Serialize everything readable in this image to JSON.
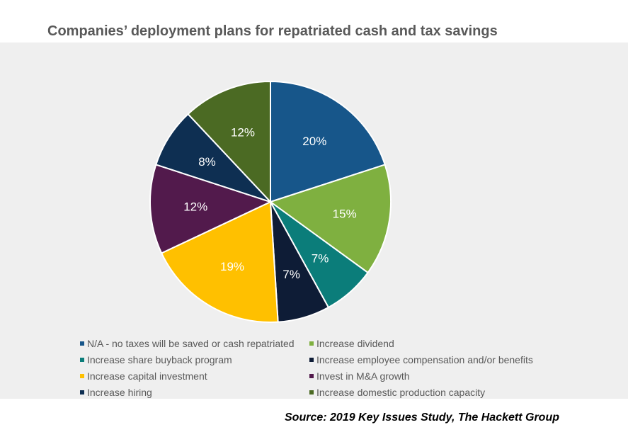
{
  "chart_data": {
    "type": "pie",
    "title": "Companies’ deployment plans for repatriated cash and tax savings",
    "slices": [
      {
        "label": "N/A - no taxes will be saved or cash repatriated",
        "value": 20,
        "display": "20%",
        "color": "#17568a"
      },
      {
        "label": "Increase dividend",
        "value": 15,
        "display": "15%",
        "color": "#7fb040"
      },
      {
        "label": "Increase share buyback program",
        "value": 7,
        "display": "7%",
        "color": "#0b7d7a"
      },
      {
        "label": "Increase employee compensation and/or benefits",
        "value": 7,
        "display": "7%",
        "color": "#0e1c36"
      },
      {
        "label": "Increase capital investment",
        "value": 19,
        "display": "19%",
        "color": "#ffc000"
      },
      {
        "label": "Invest in M&A growth",
        "value": 12,
        "display": "12%",
        "color": "#521a4c"
      },
      {
        "label": "Increase hiring",
        "value": 8,
        "display": "8%",
        "color": "#0e2f52"
      },
      {
        "label": "Increase domestic production capacity",
        "value": 12,
        "display": "12%",
        "color": "#4b6a23"
      }
    ],
    "legend_placement": "bottom"
  },
  "source": "Source: 2019 Key Issues Study, The Hackett Group"
}
